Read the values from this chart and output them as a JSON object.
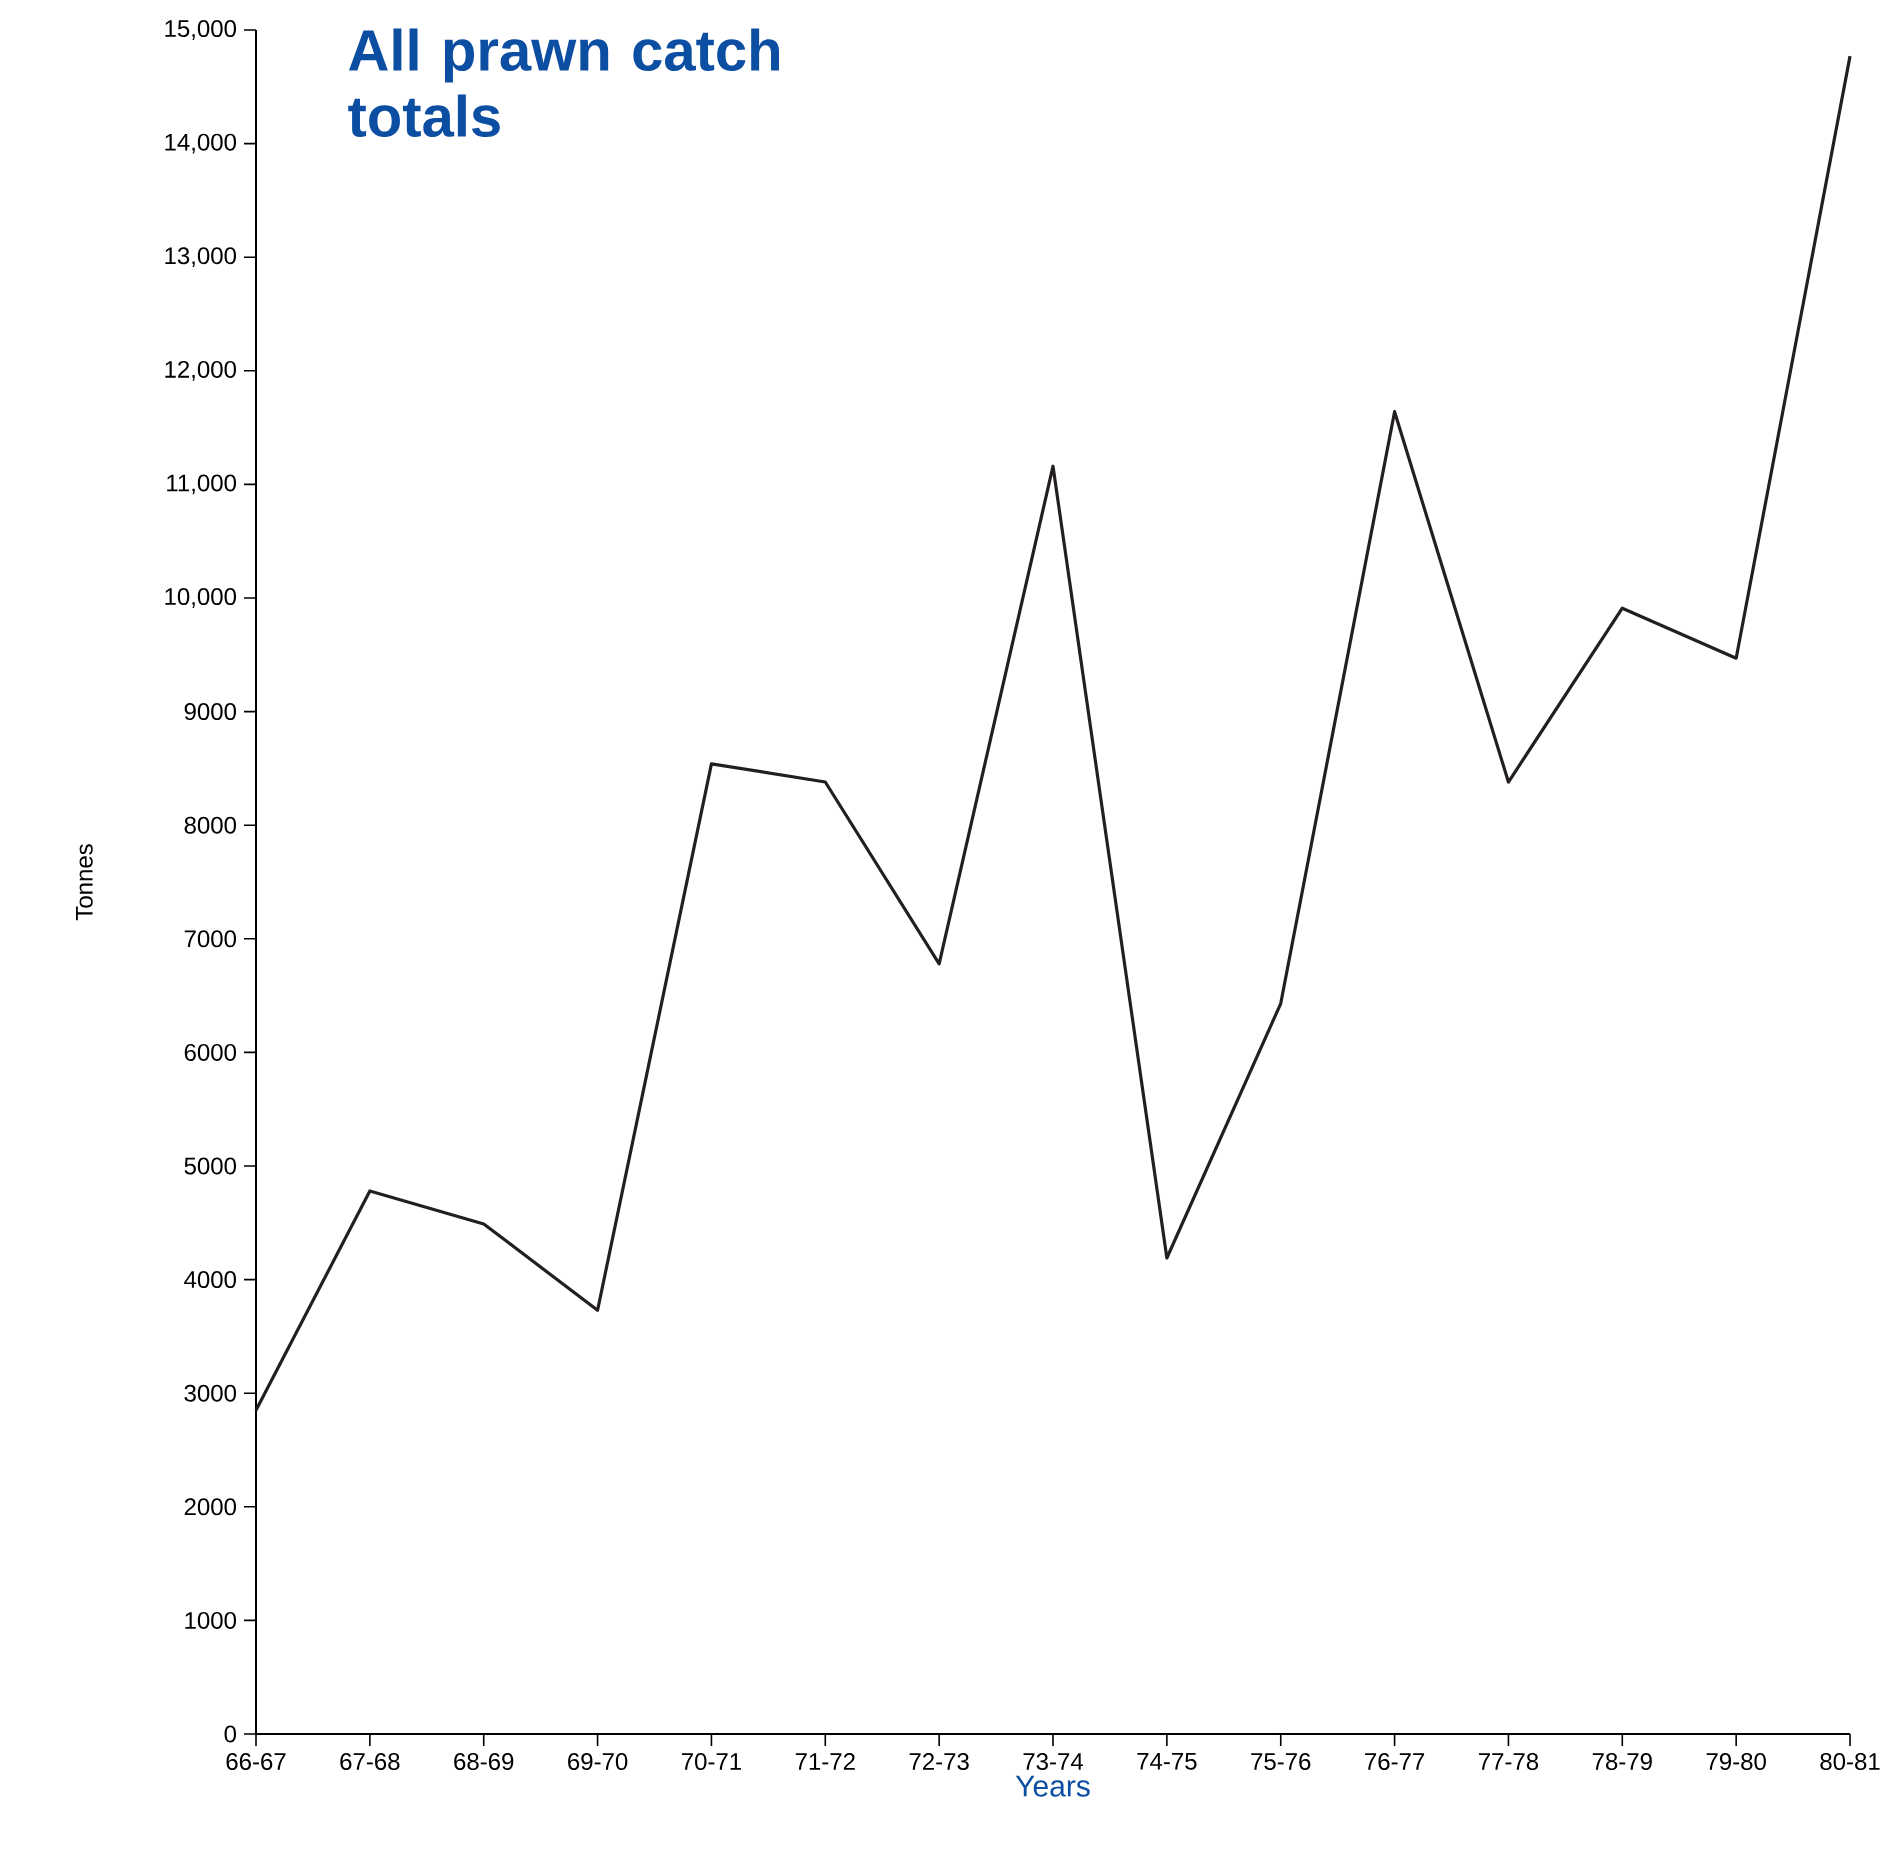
{
  "chart_data": {
    "type": "line",
    "title": "All prawn catch totals",
    "xlabel": "Years",
    "ylabel": "Tonnes",
    "categories": [
      "66-67",
      "67-68",
      "68-69",
      "69-70",
      "70-71",
      "71-72",
      "72-73",
      "73-74",
      "74-75",
      "75-76",
      "76-77",
      "77-78",
      "78-79",
      "79-80",
      "80-81"
    ],
    "values": [
      2850,
      4780,
      4490,
      3730,
      8540,
      8380,
      6780,
      11160,
      4190,
      6430,
      11640,
      8380,
      9910,
      9470,
      14770
    ],
    "color": "#231f20",
    "ylim": [
      0,
      15000
    ],
    "yticks": [
      0,
      1000,
      2000,
      3000,
      4000,
      5000,
      6000,
      7000,
      8000,
      9000,
      {
        "value": 10000,
        "label": "10,000"
      },
      {
        "value": 11000,
        "label": "11,000"
      },
      {
        "value": 12000,
        "label": "12,000"
      },
      {
        "value": 13000,
        "label": "13,000"
      },
      {
        "value": 14000,
        "label": "14,000"
      },
      {
        "value": 15000,
        "label": "15,000"
      }
    ]
  }
}
